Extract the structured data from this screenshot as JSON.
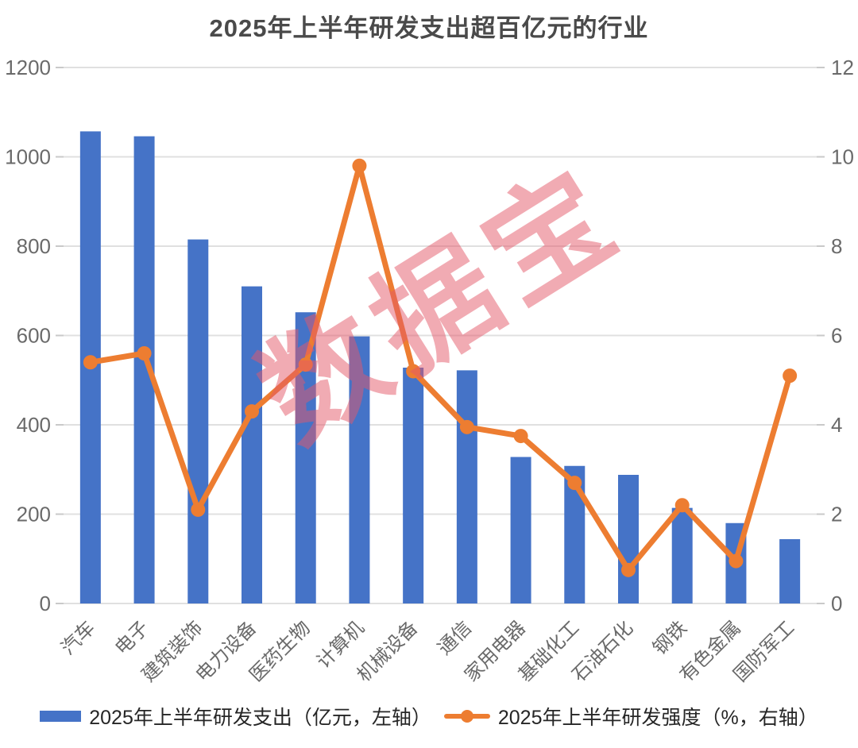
{
  "chart_data": {
    "type": "combo-bar-line",
    "title": "2025年上半年研发支出超百亿元的行业",
    "categories": [
      "汽车",
      "电子",
      "建筑装饰",
      "电力设备",
      "医药生物",
      "计算机",
      "机械设备",
      "通信",
      "家用电器",
      "基础化工",
      "石油石化",
      "钢铁",
      "有色金属",
      "国防军工"
    ],
    "series": [
      {
        "name": "2025年上半年研发支出（亿元，左轴）",
        "type": "bar",
        "axis": "left",
        "color": "#4573C7",
        "values": [
          1057,
          1046,
          815,
          710,
          652,
          598,
          528,
          522,
          328,
          308,
          288,
          214,
          180,
          144
        ]
      },
      {
        "name": "2025年上半年研发强度（%，右轴）",
        "type": "line",
        "axis": "right",
        "color": "#ED7D31",
        "values": [
          5.4,
          5.6,
          2.1,
          4.3,
          5.35,
          9.8,
          5.2,
          3.95,
          3.75,
          2.7,
          0.75,
          2.2,
          0.95,
          5.1
        ]
      }
    ],
    "left_axis": {
      "min": 0,
      "max": 1200,
      "step": 200,
      "ticks": [
        0,
        200,
        400,
        600,
        800,
        1000,
        1200
      ]
    },
    "right_axis": {
      "min": 0,
      "max": 12,
      "step": 2,
      "ticks": [
        0,
        2,
        4,
        6,
        8,
        10,
        12
      ]
    },
    "grid": true,
    "legend_position": "bottom",
    "watermark": "数据宝"
  },
  "colors": {
    "background": "#ffffff",
    "bar": "#4573C7",
    "line": "#ED7D31",
    "grid": "#e0e0e0",
    "tick": "#c9c9c9",
    "axis_text": "#6a6a6a",
    "title_text": "#4a4a4a",
    "legend_text": "#262626",
    "watermark": "#e4596a"
  }
}
